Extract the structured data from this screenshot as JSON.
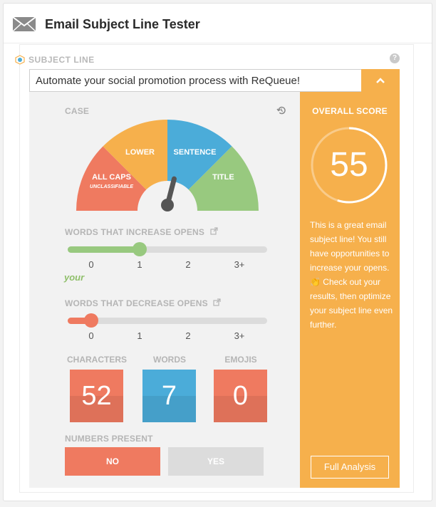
{
  "header": {
    "title": "Email Subject Line Tester",
    "icon": "envelope-icon"
  },
  "subject": {
    "label": "SUBJECT LINE",
    "value": "Automate your social promotion process with ReQueue!",
    "help": "?",
    "toggle": "⌃"
  },
  "case": {
    "label": "CASE",
    "segments": [
      "ALL CAPS",
      "LOWER",
      "SENTENCE",
      "TITLE"
    ],
    "sublabel": "UNCLASSIFIABLE",
    "colors": [
      "#ef7a60",
      "#f6b04c",
      "#4bacd9",
      "#98c97f"
    ],
    "needle_fraction": 0.58
  },
  "increase": {
    "label": "WORDS THAT INCREASE OPENS",
    "ticks": [
      "0",
      "1",
      "2",
      "3+"
    ],
    "value": 1,
    "color": "#98c97f",
    "words": "your"
  },
  "decrease": {
    "label": "WORDS THAT DECREASE OPENS",
    "ticks": [
      "0",
      "1",
      "2",
      "3+"
    ],
    "value": 0,
    "color": "#ef7a60"
  },
  "metrics": {
    "characters": {
      "label": "CHARACTERS",
      "value": "52",
      "color": "#ef7a60"
    },
    "words": {
      "label": "WORDS",
      "value": "7",
      "color": "#4bacd9"
    },
    "emojis": {
      "label": "EMOJIS",
      "value": "0",
      "color": "#ef7a60"
    }
  },
  "numbers": {
    "label": "NUMBERS PRESENT",
    "no": "NO",
    "yes": "YES"
  },
  "score": {
    "title": "OVERALL SCORE",
    "value": "55",
    "fraction": 0.55,
    "text": "This is a great email subject line! You still have opportunities to increase your opens. 👏 Check out your results, then optimize your subject line even further.",
    "button": "Full Analysis"
  }
}
